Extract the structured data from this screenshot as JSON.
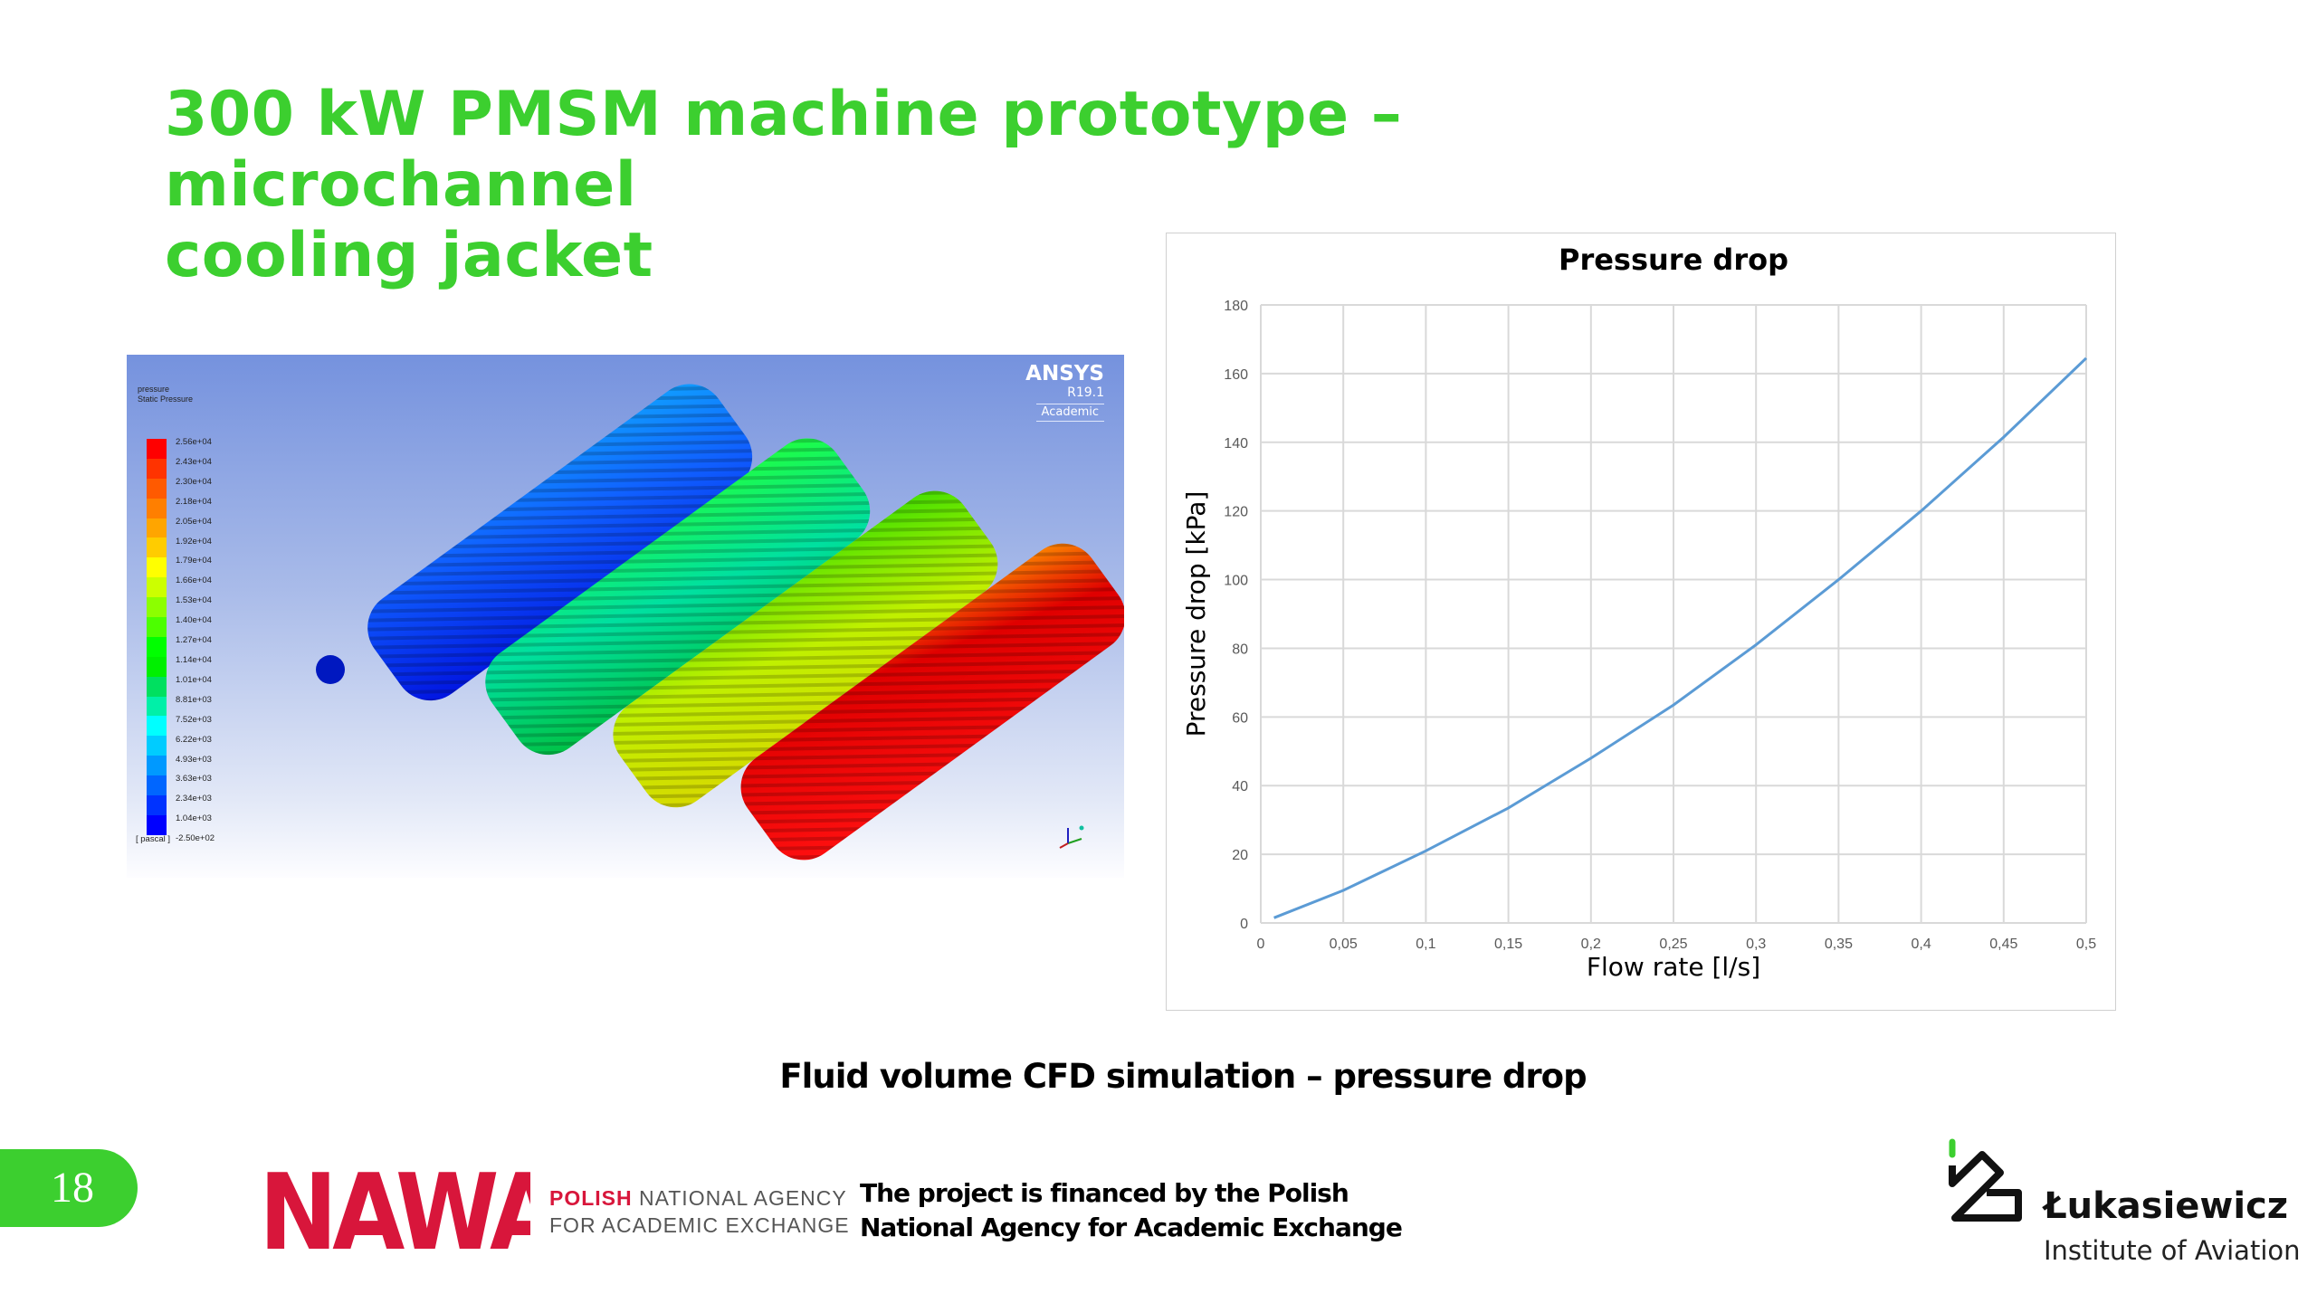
{
  "slide": {
    "title_line1": "300 kW PMSM machine prototype – microchannel",
    "title_line2": "cooling jacket",
    "caption": "Fluid volume CFD simulation – pressure drop",
    "page_number": "18",
    "accent_color": "#3ccf2f"
  },
  "cfd": {
    "quantity": "pressure",
    "quantity_label": "Static Pressure",
    "unit": "[ pascal ]",
    "legend_values": [
      "2.56e+04",
      "2.43e+04",
      "2.30e+04",
      "2.18e+04",
      "2.05e+04",
      "1.92e+04",
      "1.79e+04",
      "1.66e+04",
      "1.53e+04",
      "1.40e+04",
      "1.27e+04",
      "1.14e+04",
      "1.01e+04",
      "8.81e+03",
      "7.52e+03",
      "6.22e+03",
      "4.93e+03",
      "3.63e+03",
      "2.34e+03",
      "1.04e+03",
      "-2.50e+02"
    ],
    "legend_colors": [
      "#ff0000",
      "#ff3300",
      "#ff5a00",
      "#ff7f00",
      "#ffa500",
      "#ffcc00",
      "#ffff00",
      "#ccff00",
      "#8cff00",
      "#4cff00",
      "#00ff00",
      "#00f000",
      "#00e060",
      "#00f0a8",
      "#00ffff",
      "#00ccff",
      "#0099ff",
      "#0066ff",
      "#0033ff",
      "#0000ff"
    ],
    "software": "ANSYS",
    "version": "R19.1",
    "license": "Academic"
  },
  "chart_data": {
    "type": "line",
    "title": "Pressure drop",
    "xlabel": "Flow rate [l/s]",
    "ylabel": "Pressure drop [kPa]",
    "xlim": [
      0,
      0.5
    ],
    "ylim": [
      0,
      180
    ],
    "x_ticks": [
      "0",
      "0,05",
      "0,1",
      "0,15",
      "0,2",
      "0,25",
      "0,3",
      "0,35",
      "0,4",
      "0,45",
      "0,5"
    ],
    "y_ticks": [
      "0",
      "20",
      "40",
      "60",
      "80",
      "100",
      "120",
      "140",
      "160",
      "180"
    ],
    "grid": true,
    "series": [
      {
        "name": "Pressure drop",
        "color": "#5b9bd5",
        "x": [
          0.008,
          0.05,
          0.1,
          0.15,
          0.2,
          0.25,
          0.3,
          0.35,
          0.4,
          0.45,
          0.5
        ],
        "y": [
          1.5,
          9.5,
          21,
          33.5,
          48,
          63.5,
          81,
          100,
          120,
          141.5,
          164.5
        ]
      }
    ]
  },
  "footer": {
    "nawa_polish": "POLISH",
    "nawa_line1_rest": "NATIONAL AGENCY",
    "nawa_line2": "FOR ACADEMIC EXCHANGE",
    "nawa_logo_text": "NAWA",
    "financed_line1": "The project is financed by the Polish",
    "financed_line2": "National Agency for Academic Exchange",
    "institute_name": "Łukasiewicz",
    "institute_sub": "Institute of Aviation"
  }
}
